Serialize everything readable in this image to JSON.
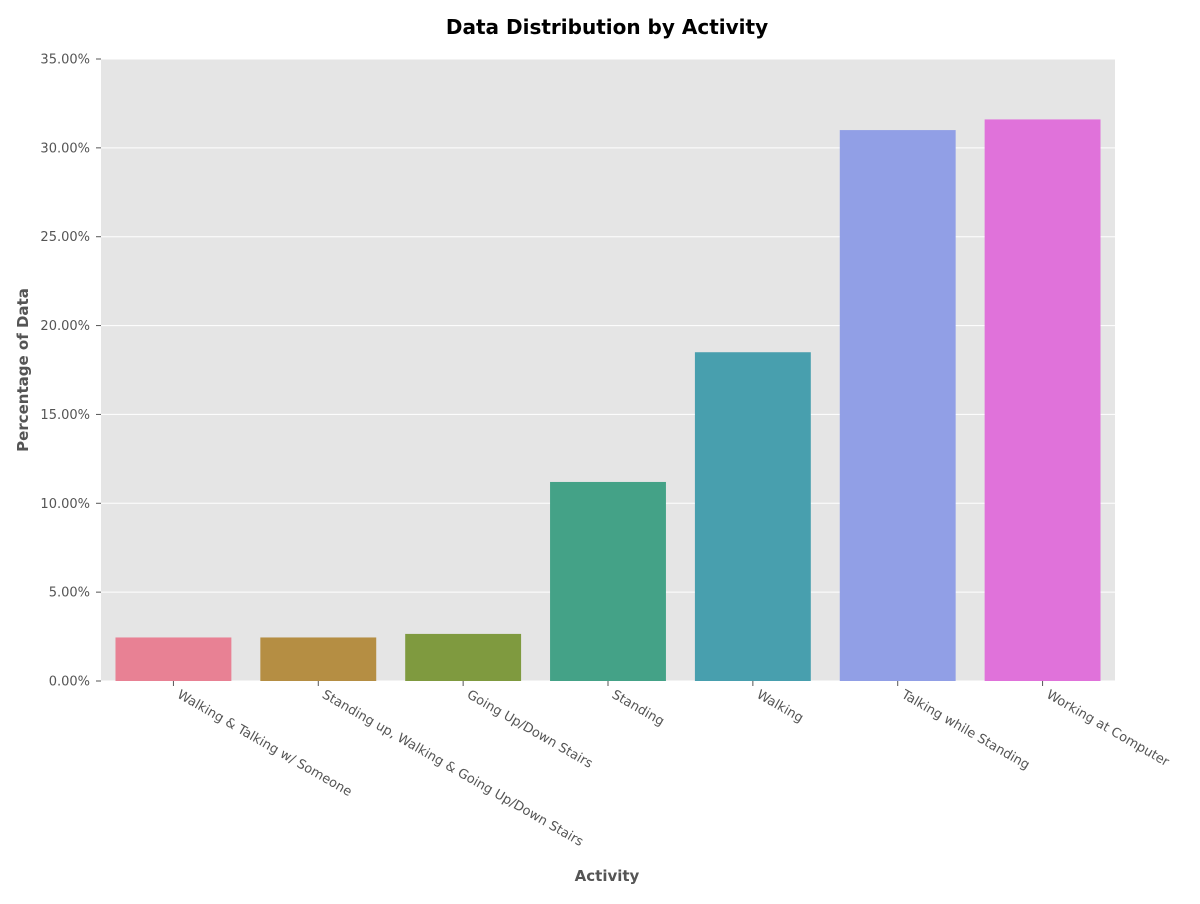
{
  "chart_data": {
    "type": "bar",
    "title": "Data Distribution by Activity",
    "xlabel": "Activity",
    "ylabel": "Percentage of Data",
    "categories": [
      "Walking & Talking w/ Someone",
      "Standing up, Walking & Going Up/Down Stairs",
      "Going Up/Down Stairs",
      "Standing",
      "Walking",
      "Talking while Standing",
      "Working at Computer"
    ],
    "values": [
      2.45,
      2.45,
      2.65,
      11.2,
      18.5,
      31.0,
      31.6
    ],
    "ylim": [
      0,
      35
    ],
    "yticks": [
      0,
      5,
      10,
      15,
      20,
      25,
      30,
      35
    ],
    "ytick_labels": [
      "0.00%",
      "5.00%",
      "10.00%",
      "15.00%",
      "20.00%",
      "25.00%",
      "30.00%",
      "35.00%"
    ],
    "colors": [
      "#e88194",
      "#b58e43",
      "#7f9a3f",
      "#44a287",
      "#489fae",
      "#919fe6",
      "#e072da"
    ],
    "grid": true,
    "plot_background": "#e5e5e5",
    "grid_color": "#ffffff"
  }
}
